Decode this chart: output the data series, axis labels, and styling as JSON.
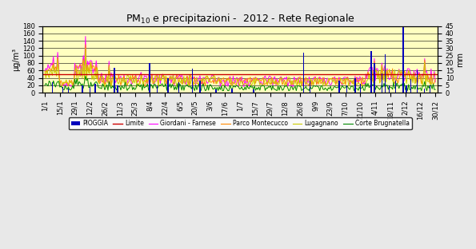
{
  "title": "PM$_{10}$ e precipitazioni -  2012 - Rete Regionale",
  "ylabel_left": "μg/m³",
  "ylabel_right": "mm",
  "ylim_left": [
    0,
    180
  ],
  "ylim_right": [
    0,
    45
  ],
  "yticks_left": [
    0,
    20,
    40,
    60,
    80,
    100,
    120,
    140,
    160,
    180
  ],
  "yticks_right": [
    0,
    5,
    10,
    15,
    20,
    25,
    30,
    35,
    40,
    45
  ],
  "limit_value": 50,
  "plot_bg": "#FFFFC0",
  "fig_bg": "#E8E8E8",
  "colors": {
    "pioggia": "#0000BB",
    "limite": "#CC0000",
    "giordani": "#FF00FF",
    "parco": "#FF8800",
    "lugagnano": "#CCCC00",
    "corte": "#008800"
  },
  "xtick_labels": [
    "1/1",
    "15/1",
    "29/1",
    "12/2",
    "26/2",
    "11/3",
    "25/3",
    "8/4",
    "22/4",
    "6/5",
    "20/5",
    "3/6",
    "17/6",
    "1/7",
    "15/7",
    "29/7",
    "12/8",
    "26/8",
    "9/9",
    "23/9",
    "7/10",
    "21/10",
    "4/11",
    "18/11",
    "2/12",
    "16/12",
    "30/12"
  ],
  "n_days": 366,
  "legend_labels": [
    "PIOGGIA",
    "Limite",
    "Giordani - Farnese",
    "Parco Montecucco",
    "Lugagnano",
    "Corte Brugnatella"
  ]
}
